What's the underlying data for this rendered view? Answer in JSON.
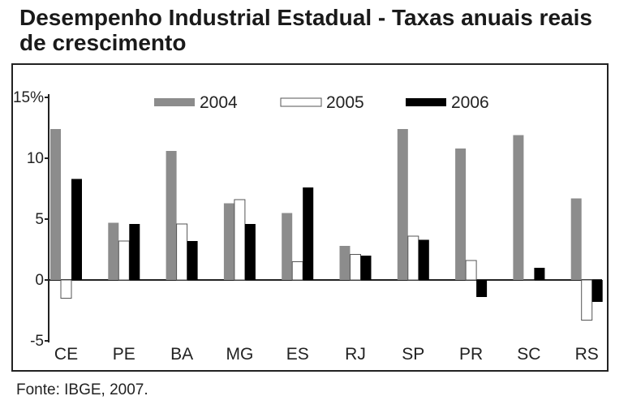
{
  "title": "Desempenho Industrial Estadual - Taxas anuais reais de crescimento",
  "source": "Fonte: IBGE, 2007.",
  "colors": {
    "2004": "#8c8c8c",
    "2005": "#ffffff",
    "2006": "#000000"
  },
  "chart_data": {
    "type": "bar",
    "title": "Desempenho Industrial Estadual - Taxas anuais reais de crescimento",
    "xlabel": "",
    "ylabel": "",
    "ylim": [
      -5,
      15
    ],
    "yticks": [
      "-5",
      "0",
      "5",
      "10",
      "15%"
    ],
    "ytick_values": [
      -5,
      0,
      5,
      10,
      15
    ],
    "categories": [
      "CE",
      "PE",
      "BA",
      "MG",
      "ES",
      "RJ",
      "SP",
      "PR",
      "SC",
      "RS"
    ],
    "series": [
      {
        "name": "2004",
        "values": [
          12.4,
          4.7,
          10.6,
          6.3,
          5.5,
          2.8,
          12.4,
          10.8,
          11.9,
          6.7
        ]
      },
      {
        "name": "2005",
        "values": [
          -1.5,
          3.2,
          4.6,
          6.6,
          1.5,
          2.1,
          3.6,
          1.6,
          0,
          -3.3
        ]
      },
      {
        "name": "2006",
        "values": [
          8.3,
          4.6,
          3.2,
          4.6,
          7.6,
          2.0,
          3.3,
          -1.4,
          1.0,
          -1.8
        ]
      }
    ],
    "legend_position": "top",
    "grid": false
  }
}
